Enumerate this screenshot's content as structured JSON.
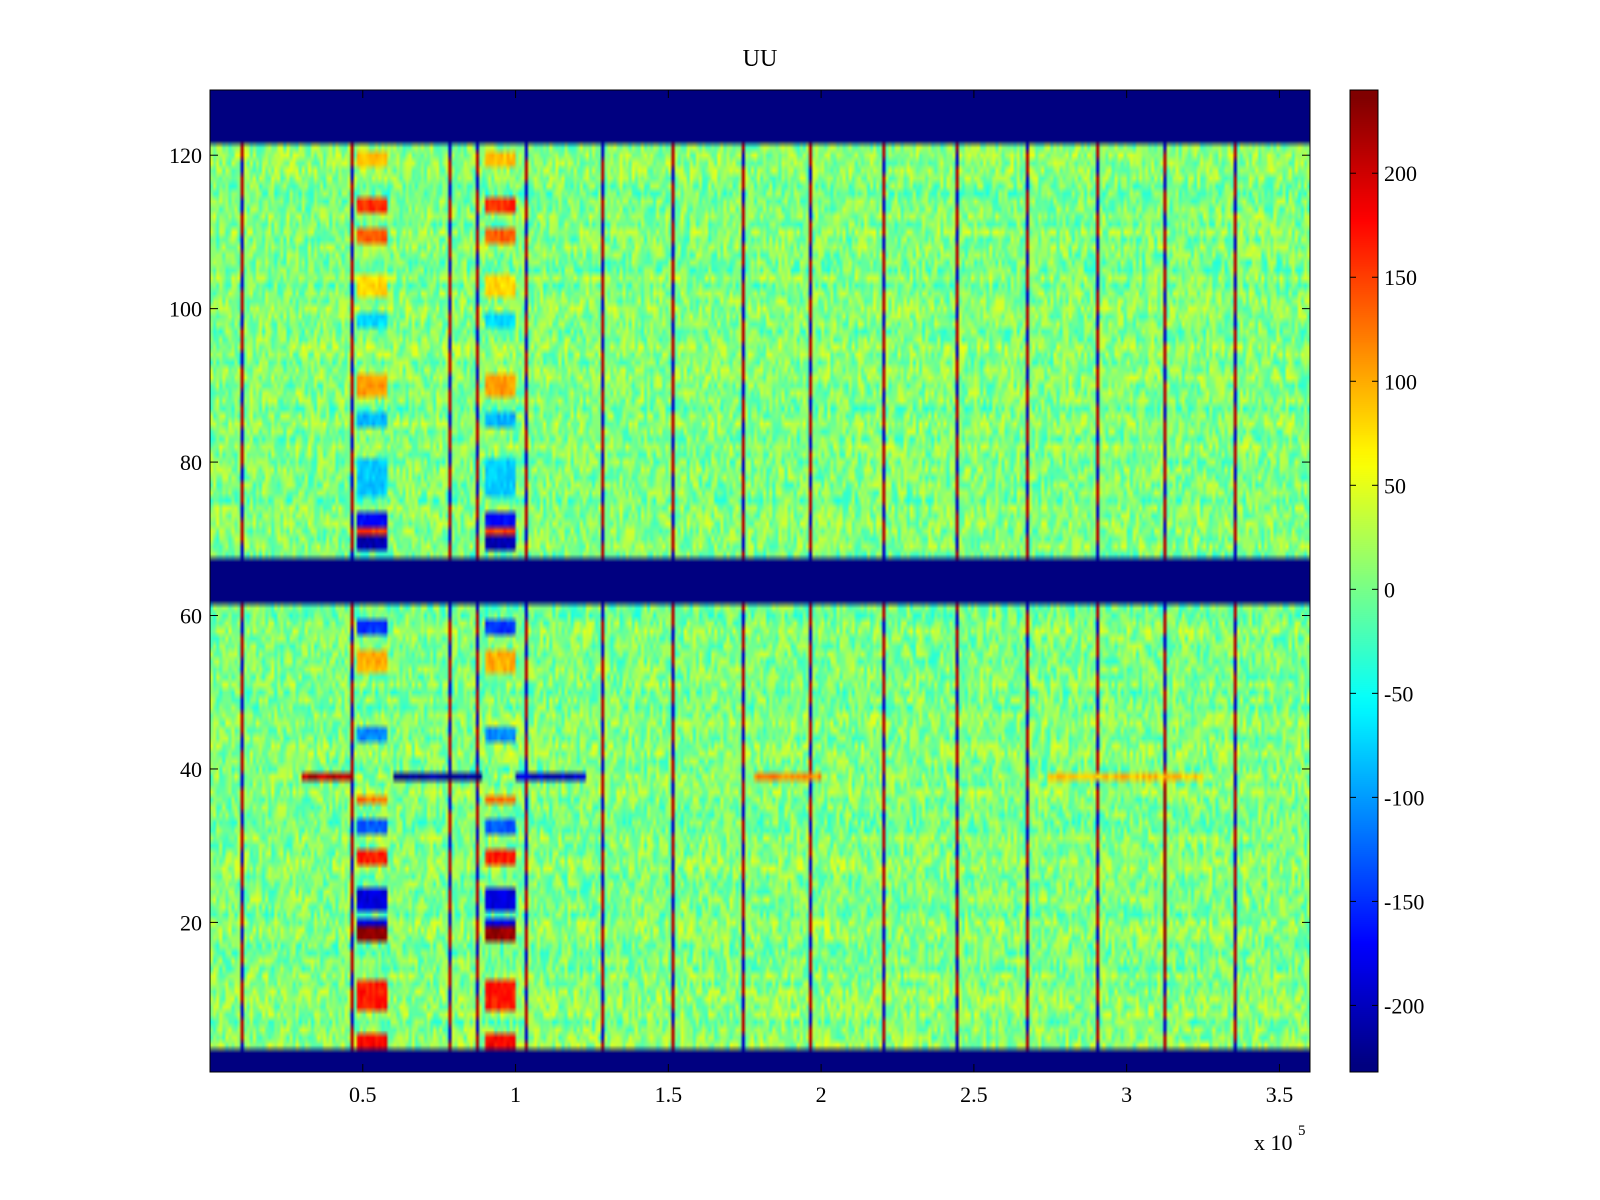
{
  "chart_data": {
    "type": "heatmap",
    "title": "UU",
    "xlabel": "",
    "ylabel": "",
    "x_multiplier_label": "x 10",
    "x_multiplier_exponent": "5",
    "xlim": [
      0,
      3.6
    ],
    "ylim": [
      0.5,
      128.5
    ],
    "x_ticks": [
      0.5,
      1,
      1.5,
      2,
      2.5,
      3,
      3.5
    ],
    "x_tick_labels": [
      "0.5",
      "1",
      "1.5",
      "2",
      "2.5",
      "3",
      "3.5"
    ],
    "y_ticks": [
      20,
      40,
      60,
      80,
      100,
      120
    ],
    "y_tick_labels": [
      "20",
      "40",
      "60",
      "80",
      "100",
      "120"
    ],
    "colormap": "jet",
    "clim": [
      -232,
      240
    ],
    "colorbar_ticks": [
      200,
      150,
      100,
      50,
      0,
      -50,
      -100,
      -150,
      -200
    ],
    "colorbar_tick_labels": [
      "200",
      "150",
      "100",
      "50",
      "0",
      "-50",
      "-100",
      "-150",
      "-200"
    ],
    "rows": 128,
    "columns": 360,
    "background_value": 5,
    "noise_amplitude": 40,
    "blank_row_ranges": [
      [
        1,
        3
      ],
      [
        62,
        67
      ],
      [
        122,
        128
      ]
    ],
    "vertical_stripe_x": [
      0.1,
      0.46,
      0.78,
      0.87,
      1.03,
      1.28,
      1.51,
      1.74,
      1.97,
      2.21,
      2.45,
      2.68,
      2.91,
      3.13,
      3.36
    ],
    "block_region_x": [
      [
        0.48,
        0.57
      ],
      [
        0.9,
        0.99
      ]
    ],
    "block_features": [
      {
        "rows": [
          3,
          5
        ],
        "value": 180
      },
      {
        "rows": [
          9,
          12
        ],
        "value": 170
      },
      {
        "rows": [
          18,
          19
        ],
        "value": 230
      },
      {
        "rows": [
          20,
          20
        ],
        "value": -190
      },
      {
        "rows": [
          22,
          24
        ],
        "value": -190
      },
      {
        "rows": [
          28,
          29
        ],
        "value": 170
      },
      {
        "rows": [
          32,
          33
        ],
        "value": -130
      },
      {
        "rows": [
          36,
          36
        ],
        "value": 130
      },
      {
        "rows": [
          44,
          45
        ],
        "value": -110
      },
      {
        "rows": [
          53,
          55
        ],
        "value": 100
      },
      {
        "rows": [
          58,
          59
        ],
        "value": -150
      },
      {
        "rows": [
          69,
          70
        ],
        "value": -210
      },
      {
        "rows": [
          71,
          71
        ],
        "value": 150
      },
      {
        "rows": [
          72,
          73
        ],
        "value": -170
      },
      {
        "rows": [
          76,
          80
        ],
        "value": -80
      },
      {
        "rows": [
          85,
          86
        ],
        "value": -90
      },
      {
        "rows": [
          89,
          91
        ],
        "value": 110
      },
      {
        "rows": [
          98,
          99
        ],
        "value": -70
      },
      {
        "rows": [
          102,
          104
        ],
        "value": 80
      },
      {
        "rows": [
          109,
          110
        ],
        "value": 140
      },
      {
        "rows": [
          113,
          114
        ],
        "value": 160
      },
      {
        "rows": [
          119,
          120
        ],
        "value": 90
      }
    ],
    "row39_segments": [
      {
        "x": [
          0.3,
          0.46
        ],
        "value": 210
      },
      {
        "x": [
          0.6,
          0.88
        ],
        "value": -220
      },
      {
        "x": [
          1.0,
          1.22
        ],
        "value": -200
      },
      {
        "x": [
          1.78,
          2.0
        ],
        "value": 120
      },
      {
        "x": [
          2.75,
          3.25
        ],
        "value": 90
      }
    ],
    "red_spike": {
      "x": 3.13,
      "rows": [
        14,
        37
      ],
      "value": 230
    }
  }
}
